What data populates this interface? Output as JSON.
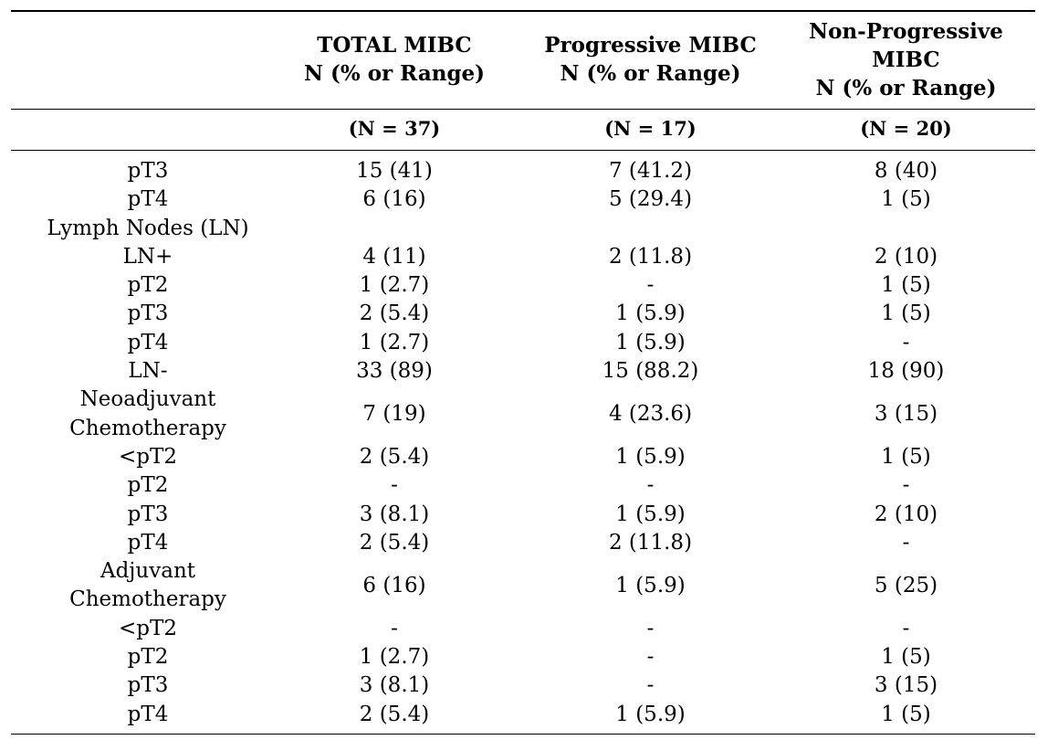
{
  "header": {
    "col1": [
      "TOTAL MIBC",
      "N (% or Range)"
    ],
    "col2": [
      "Progressive MIBC",
      "N (% or Range)"
    ],
    "col3": [
      "Non-Progressive",
      "MIBC",
      "N (% or Range)"
    ]
  },
  "totals": [
    "(N = 37)",
    "(N = 17)",
    "(N = 20)"
  ],
  "rows": [
    {
      "label": "pT3",
      "total": "15 (41)",
      "prog": "7 (41.2)",
      "nonprog": "8 (40)"
    },
    {
      "label": "pT4",
      "total": "6 (16)",
      "prog": "5 (29.4)",
      "nonprog": "1 (5)"
    },
    {
      "label": "Lymph Nodes (LN)",
      "total": "",
      "prog": "",
      "nonprog": ""
    },
    {
      "label": "LN+",
      "total": "4 (11)",
      "prog": "2 (11.8)",
      "nonprog": "2 (10)"
    },
    {
      "label": "pT2",
      "total": "1 (2.7)",
      "prog": "-",
      "nonprog": "1 (5)"
    },
    {
      "label": "pT3",
      "total": "2 (5.4)",
      "prog": "1 (5.9)",
      "nonprog": "1 (5)"
    },
    {
      "label": "pT4",
      "total": "1 (2.7)",
      "prog": "1 (5.9)",
      "nonprog": "-"
    },
    {
      "label": "LN-",
      "total": "33 (89)",
      "prog": "15 (88.2)",
      "nonprog": "18 (90)"
    },
    {
      "label": "Neoadjuvant",
      "label2": "Chemotherapy",
      "total": "7 (19)",
      "prog": "4 (23.6)",
      "nonprog": "3 (15)"
    },
    {
      "label": "<pT2",
      "total": "2 (5.4)",
      "prog": "1 (5.9)",
      "nonprog": "1 (5)"
    },
    {
      "label": "pT2",
      "total": "-",
      "prog": "-",
      "nonprog": "-"
    },
    {
      "label": "pT3",
      "total": "3 (8.1)",
      "prog": "1 (5.9)",
      "nonprog": "2 (10)"
    },
    {
      "label": "pT4",
      "total": "2 (5.4)",
      "prog": "2 (11.8)",
      "nonprog": "-"
    },
    {
      "label": "Adjuvant",
      "label2": "Chemotherapy",
      "total": "6 (16)",
      "prog": "1 (5.9)",
      "nonprog": "5 (25)"
    },
    {
      "label": "<pT2",
      "total": "-",
      "prog": "-",
      "nonprog": "-"
    },
    {
      "label": "pT2",
      "total": "1 (2.7)",
      "prog": "-",
      "nonprog": "1 (5)"
    },
    {
      "label": "pT3",
      "total": "3 (8.1)",
      "prog": "-",
      "nonprog": "3 (15)"
    },
    {
      "label": "pT4",
      "total": "2 (5.4)",
      "prog": "1 (5.9)",
      "nonprog": "1 (5)"
    }
  ]
}
